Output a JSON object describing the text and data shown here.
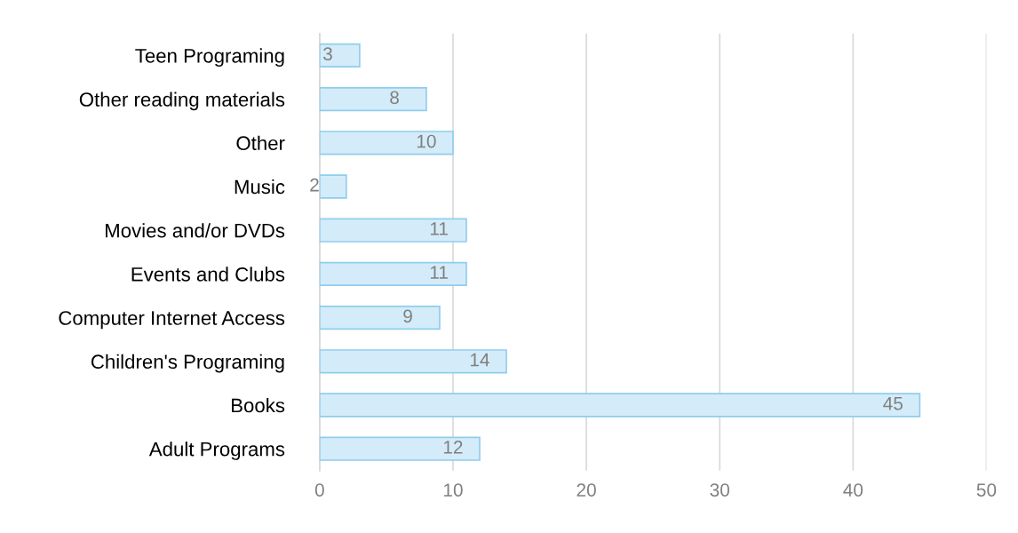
{
  "chart_data": {
    "type": "bar",
    "orientation": "horizontal",
    "categories": [
      "Teen Programing",
      "Other reading materials",
      "Other",
      "Music",
      "Movies and/or DVDs",
      "Events and Clubs",
      "Computer Internet Access",
      "Children's Programing",
      "Books",
      "Adult Programs"
    ],
    "values": [
      3,
      8,
      10,
      2,
      11,
      11,
      9,
      14,
      45,
      12
    ],
    "color": "#d4ecf9",
    "xlim": [
      0,
      50
    ],
    "xticks": [
      0,
      10,
      20,
      30,
      40,
      50
    ],
    "grid": "x",
    "data_labels": true,
    "legend": false
  }
}
